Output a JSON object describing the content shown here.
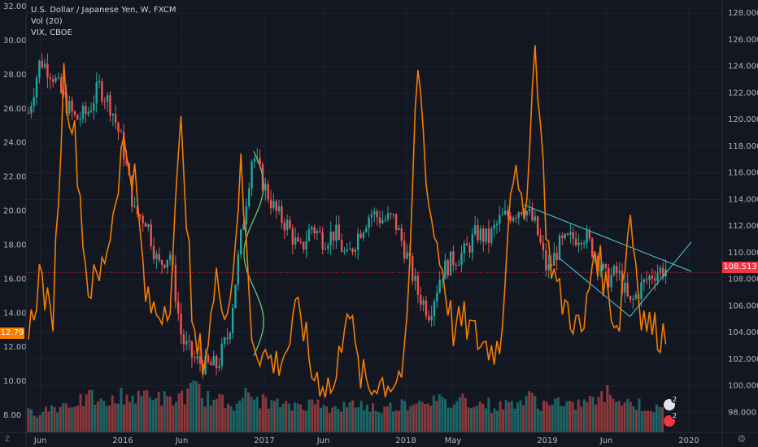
{
  "legend": {
    "line1": "U.S. Dollar / Japanese Yen, W, FXCM",
    "line2": "Vol (20)",
    "line3": "VIX, CBOE"
  },
  "controls": {
    "zone_label": "Z",
    "gear_icon": "gear-icon"
  },
  "colors": {
    "background": "#131722",
    "up": "#26a69a",
    "down": "#ef5350",
    "vix": "#f57c00",
    "trendline": "#4dd0e1",
    "price_line": "#f23645"
  },
  "price_tag": {
    "value": "108.513"
  },
  "vix_tag": {
    "value": "12.79"
  },
  "events": [
    {
      "badge": "2"
    },
    {
      "badge": "2"
    }
  ],
  "chart_data": [
    {
      "type": "candlestick",
      "name": "U.S. Dollar / Japanese Yen, W, FXCM",
      "axis": "right",
      "y_ticks": [
        "98.000",
        "100.000",
        "102.000",
        "104.000",
        "106.000",
        "108.000",
        "110.000",
        "112.000",
        "114.000",
        "116.000",
        "118.000",
        "120.000",
        "122.000",
        "124.000",
        "126.000",
        "128.000"
      ],
      "ylim": [
        96.5,
        128.5
      ],
      "last_price": 108.513,
      "x_ticks": [
        "Jun",
        "2016",
        "Jun",
        "2017",
        "Jun",
        "2018",
        "May",
        "2019",
        "Jun",
        "2020"
      ],
      "approx_path": [
        [
          "2015-05",
          120.5
        ],
        [
          "2015-06",
          124.5
        ],
        [
          "2015-07",
          123.5
        ],
        [
          "2015-08",
          121.5
        ],
        [
          "2015-09",
          120.0
        ],
        [
          "2015-10",
          120.5
        ],
        [
          "2015-11",
          122.5
        ],
        [
          "2015-12",
          121.0
        ],
        [
          "2016-01",
          118.0
        ],
        [
          "2016-02",
          113.0
        ],
        [
          "2016-03",
          112.5
        ],
        [
          "2016-04",
          109.0
        ],
        [
          "2016-05",
          110.0
        ],
        [
          "2016-06",
          103.5
        ],
        [
          "2016-07",
          102.0
        ],
        [
          "2016-08",
          101.5
        ],
        [
          "2016-09",
          101.5
        ],
        [
          "2016-10",
          104.0
        ],
        [
          "2016-11",
          111.0
        ],
        [
          "2016-12",
          117.5
        ],
        [
          "2017-01",
          115.0
        ],
        [
          "2017-02",
          113.0
        ],
        [
          "2017-03",
          112.0
        ],
        [
          "2017-04",
          110.0
        ],
        [
          "2017-05",
          112.0
        ],
        [
          "2017-06",
          111.0
        ],
        [
          "2017-07",
          111.5
        ],
        [
          "2017-08",
          109.5
        ],
        [
          "2017-09",
          111.5
        ],
        [
          "2017-10",
          113.0
        ],
        [
          "2017-11",
          112.5
        ],
        [
          "2017-12",
          112.5
        ],
        [
          "2018-01",
          110.0
        ],
        [
          "2018-02",
          107.0
        ],
        [
          "2018-03",
          105.5
        ],
        [
          "2018-04",
          108.5
        ],
        [
          "2018-05",
          109.5
        ],
        [
          "2018-06",
          110.0
        ],
        [
          "2018-07",
          111.5
        ],
        [
          "2018-08",
          111.0
        ],
        [
          "2018-09",
          112.5
        ],
        [
          "2018-10",
          113.0
        ],
        [
          "2018-11",
          113.5
        ],
        [
          "2018-12",
          112.0
        ],
        [
          "2019-01",
          108.5
        ],
        [
          "2019-02",
          110.5
        ],
        [
          "2019-03",
          111.0
        ],
        [
          "2019-04",
          111.5
        ],
        [
          "2019-05",
          110.0
        ],
        [
          "2019-06",
          108.0
        ],
        [
          "2019-07",
          108.5
        ],
        [
          "2019-08",
          106.0
        ],
        [
          "2019-09",
          107.5
        ],
        [
          "2019-10",
          108.5
        ],
        [
          "2019-11",
          108.8
        ]
      ]
    },
    {
      "type": "line",
      "name": "VIX, CBOE",
      "axis": "left",
      "y_ticks": [
        "8.00",
        "10.00",
        "12.00",
        "14.00",
        "16.00",
        "18.00",
        "20.00",
        "22.00",
        "24.00",
        "26.00",
        "28.00",
        "30.00",
        "32.00"
      ],
      "ylim": [
        7,
        32
      ],
      "last_value": 12.79,
      "approx_path": [
        [
          "2015-05",
          12.5
        ],
        [
          "2015-06",
          16.5
        ],
        [
          "2015-07",
          13.0
        ],
        [
          "2015-08",
          28.0
        ],
        [
          "2015-09",
          24.0
        ],
        [
          "2015-10",
          15.5
        ],
        [
          "2015-11",
          16.0
        ],
        [
          "2015-12",
          19.0
        ],
        [
          "2016-01",
          24.0
        ],
        [
          "2016-02",
          22.0
        ],
        [
          "2016-03",
          14.5
        ],
        [
          "2016-04",
          14.0
        ],
        [
          "2016-05",
          15.0
        ],
        [
          "2016-06",
          25.5
        ],
        [
          "2016-07",
          12.0
        ],
        [
          "2016-08",
          11.5
        ],
        [
          "2016-09",
          16.0
        ],
        [
          "2016-10",
          14.0
        ],
        [
          "2016-11",
          22.5
        ],
        [
          "2016-12",
          12.5
        ],
        [
          "2017-01",
          11.5
        ],
        [
          "2017-02",
          11.0
        ],
        [
          "2017-03",
          12.0
        ],
        [
          "2017-04",
          14.5
        ],
        [
          "2017-05",
          10.5
        ],
        [
          "2017-06",
          10.0
        ],
        [
          "2017-07",
          9.5
        ],
        [
          "2017-08",
          15.0
        ],
        [
          "2017-09",
          10.5
        ],
        [
          "2017-10",
          9.5
        ],
        [
          "2017-11",
          10.0
        ],
        [
          "2017-12",
          10.0
        ],
        [
          "2018-01",
          11.0
        ],
        [
          "2018-02",
          29.0
        ],
        [
          "2018-03",
          20.0
        ],
        [
          "2018-04",
          17.0
        ],
        [
          "2018-05",
          13.0
        ],
        [
          "2018-06",
          13.5
        ],
        [
          "2018-07",
          12.5
        ],
        [
          "2018-08",
          12.0
        ],
        [
          "2018-09",
          12.0
        ],
        [
          "2018-10",
          23.0
        ],
        [
          "2018-11",
          19.0
        ],
        [
          "2018-12",
          30.0
        ],
        [
          "2019-01",
          18.0
        ],
        [
          "2019-02",
          15.0
        ],
        [
          "2019-03",
          14.0
        ],
        [
          "2019-04",
          12.5
        ],
        [
          "2019-05",
          18.0
        ],
        [
          "2019-06",
          15.5
        ],
        [
          "2019-07",
          13.0
        ],
        [
          "2019-08",
          20.0
        ],
        [
          "2019-09",
          14.0
        ],
        [
          "2019-10",
          13.0
        ],
        [
          "2019-11",
          12.79
        ]
      ]
    },
    {
      "type": "bar",
      "name": "Vol (20)",
      "approx_path_relative": "volume histogram along bottom, heights in 0-1 relative units",
      "values": [
        0.35,
        0.4,
        0.45,
        0.5,
        0.55,
        0.6,
        0.5,
        0.55,
        0.65,
        0.6,
        0.7,
        0.6,
        0.55,
        0.65,
        0.75,
        0.6,
        0.55,
        0.5,
        0.65,
        0.6,
        0.55,
        0.5,
        0.45,
        0.5,
        0.5,
        0.55,
        0.4,
        0.45,
        0.5,
        0.45,
        0.4,
        0.45,
        0.5,
        0.55,
        0.6,
        0.55,
        0.5,
        0.6,
        0.55,
        0.5,
        0.45,
        0.5,
        0.55,
        0.6,
        0.5,
        0.55,
        0.45,
        0.5,
        0.55,
        0.6,
        0.7,
        0.55,
        0.5,
        0.45,
        0.4
      ]
    }
  ]
}
